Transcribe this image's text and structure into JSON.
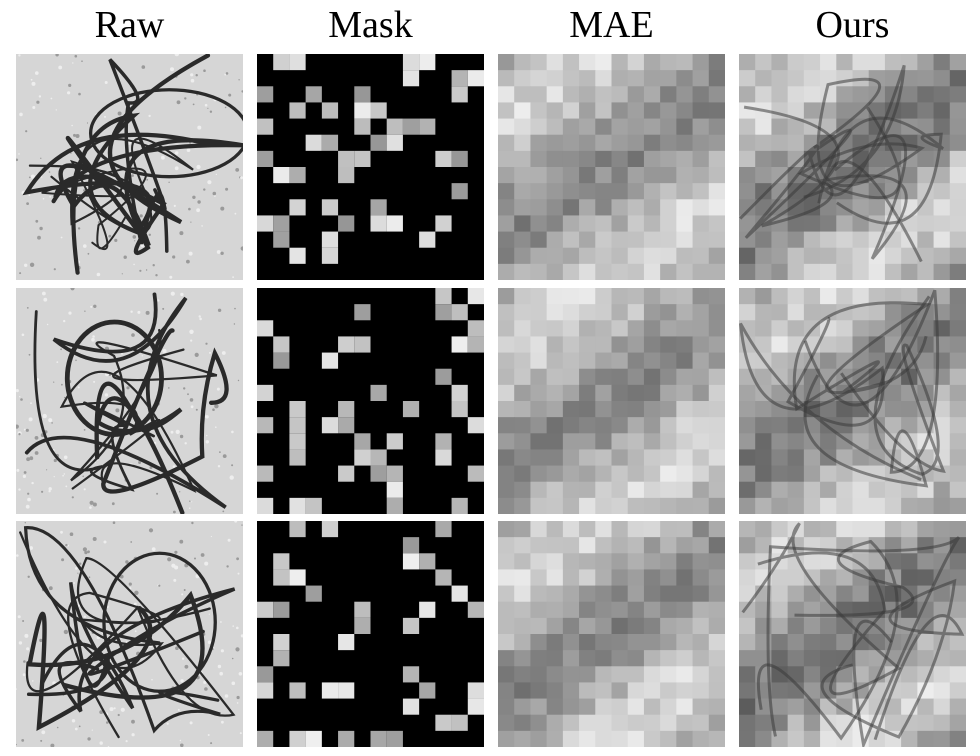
{
  "columns": [
    {
      "key": "raw",
      "label": "Raw"
    },
    {
      "key": "mask",
      "label": "Mask"
    },
    {
      "key": "mae",
      "label": "MAE"
    },
    {
      "key": "ours",
      "label": "Ours"
    }
  ],
  "rows": [
    {
      "id": "sample-1"
    },
    {
      "id": "sample-2"
    },
    {
      "id": "sample-3"
    }
  ],
  "colors": {
    "background": "#ffffff",
    "mask_fill": "#000000",
    "membrane": "#2a2a2a"
  }
}
